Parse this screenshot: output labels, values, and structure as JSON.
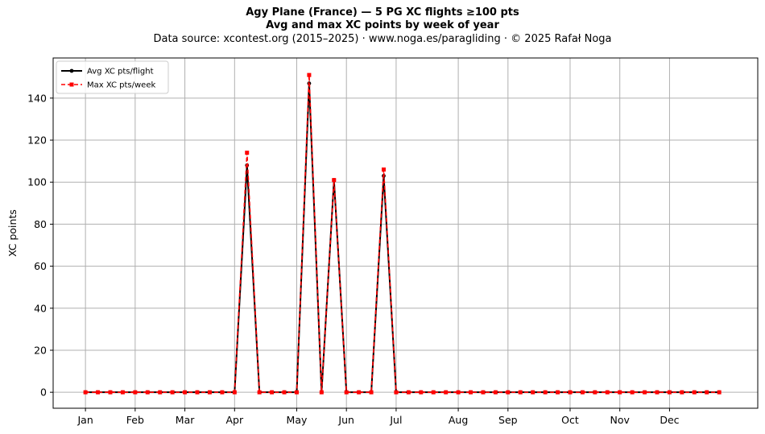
{
  "title_line1": "Agy Plane (France)  —  5 PG XC flights ≥100 pts",
  "title_line2": "Avg and max XC points by week of year",
  "subtitle": "Data source: xcontest.org (2015–2025)  ·  www.noga.es/paragliding  ·  © 2025 Rafał Noga",
  "chart_data": {
    "type": "line",
    "title": "Agy Plane (France)  —  5 PG XC flights ≥100 pts",
    "subtitle": "Avg and max XC points by week of year",
    "xlabel": "",
    "ylabel": "XC points",
    "xlim": [
      -2.6,
      54.1
    ],
    "ylim": [
      -7.6,
      159.1
    ],
    "grid": true,
    "legend_position": "upper-left",
    "x_ticks": [
      {
        "label": "Jan",
        "x": 0
      },
      {
        "label": "Feb",
        "x": 4
      },
      {
        "label": "Mar",
        "x": 8
      },
      {
        "label": "Apr",
        "x": 12
      },
      {
        "label": "May",
        "x": 17
      },
      {
        "label": "Jun",
        "x": 21
      },
      {
        "label": "Jul",
        "x": 25
      },
      {
        "label": "Aug",
        "x": 30
      },
      {
        "label": "Sep",
        "x": 34
      },
      {
        "label": "Oct",
        "x": 39
      },
      {
        "label": "Nov",
        "x": 43
      },
      {
        "label": "Dec",
        "x": 47
      }
    ],
    "y_ticks": [
      0,
      20,
      40,
      60,
      80,
      100,
      120,
      140
    ],
    "x": [
      0,
      1,
      2,
      3,
      4,
      5,
      6,
      7,
      8,
      9,
      10,
      11,
      12,
      13,
      14,
      15,
      16,
      17,
      18,
      19,
      20,
      21,
      22,
      23,
      24,
      25,
      26,
      27,
      28,
      29,
      30,
      31,
      32,
      33,
      34,
      35,
      36,
      37,
      38,
      39,
      40,
      41,
      42,
      43,
      44,
      45,
      46,
      47,
      48,
      49,
      50,
      51
    ],
    "series": [
      {
        "name": "Avg XC pts/flight",
        "color": "#000000",
        "style": "solid",
        "marker": "circle",
        "values": [
          0,
          0,
          0,
          0,
          0,
          0,
          0,
          0,
          0,
          0,
          0,
          0,
          0,
          108,
          0,
          0,
          0,
          0,
          147,
          0,
          101,
          0,
          0,
          0,
          103,
          0,
          0,
          0,
          0,
          0,
          0,
          0,
          0,
          0,
          0,
          0,
          0,
          0,
          0,
          0,
          0,
          0,
          0,
          0,
          0,
          0,
          0,
          0,
          0,
          0,
          0,
          0
        ]
      },
      {
        "name": "Max XC pts/week",
        "color": "#ff0000",
        "style": "dashed",
        "marker": "square",
        "values": [
          0,
          0,
          0,
          0,
          0,
          0,
          0,
          0,
          0,
          0,
          0,
          0,
          0,
          114,
          0,
          0,
          0,
          0,
          151,
          0,
          101,
          0,
          0,
          0,
          106,
          0,
          0,
          0,
          0,
          0,
          0,
          0,
          0,
          0,
          0,
          0,
          0,
          0,
          0,
          0,
          0,
          0,
          0,
          0,
          0,
          0,
          0,
          0,
          0,
          0,
          0,
          0
        ]
      }
    ]
  }
}
